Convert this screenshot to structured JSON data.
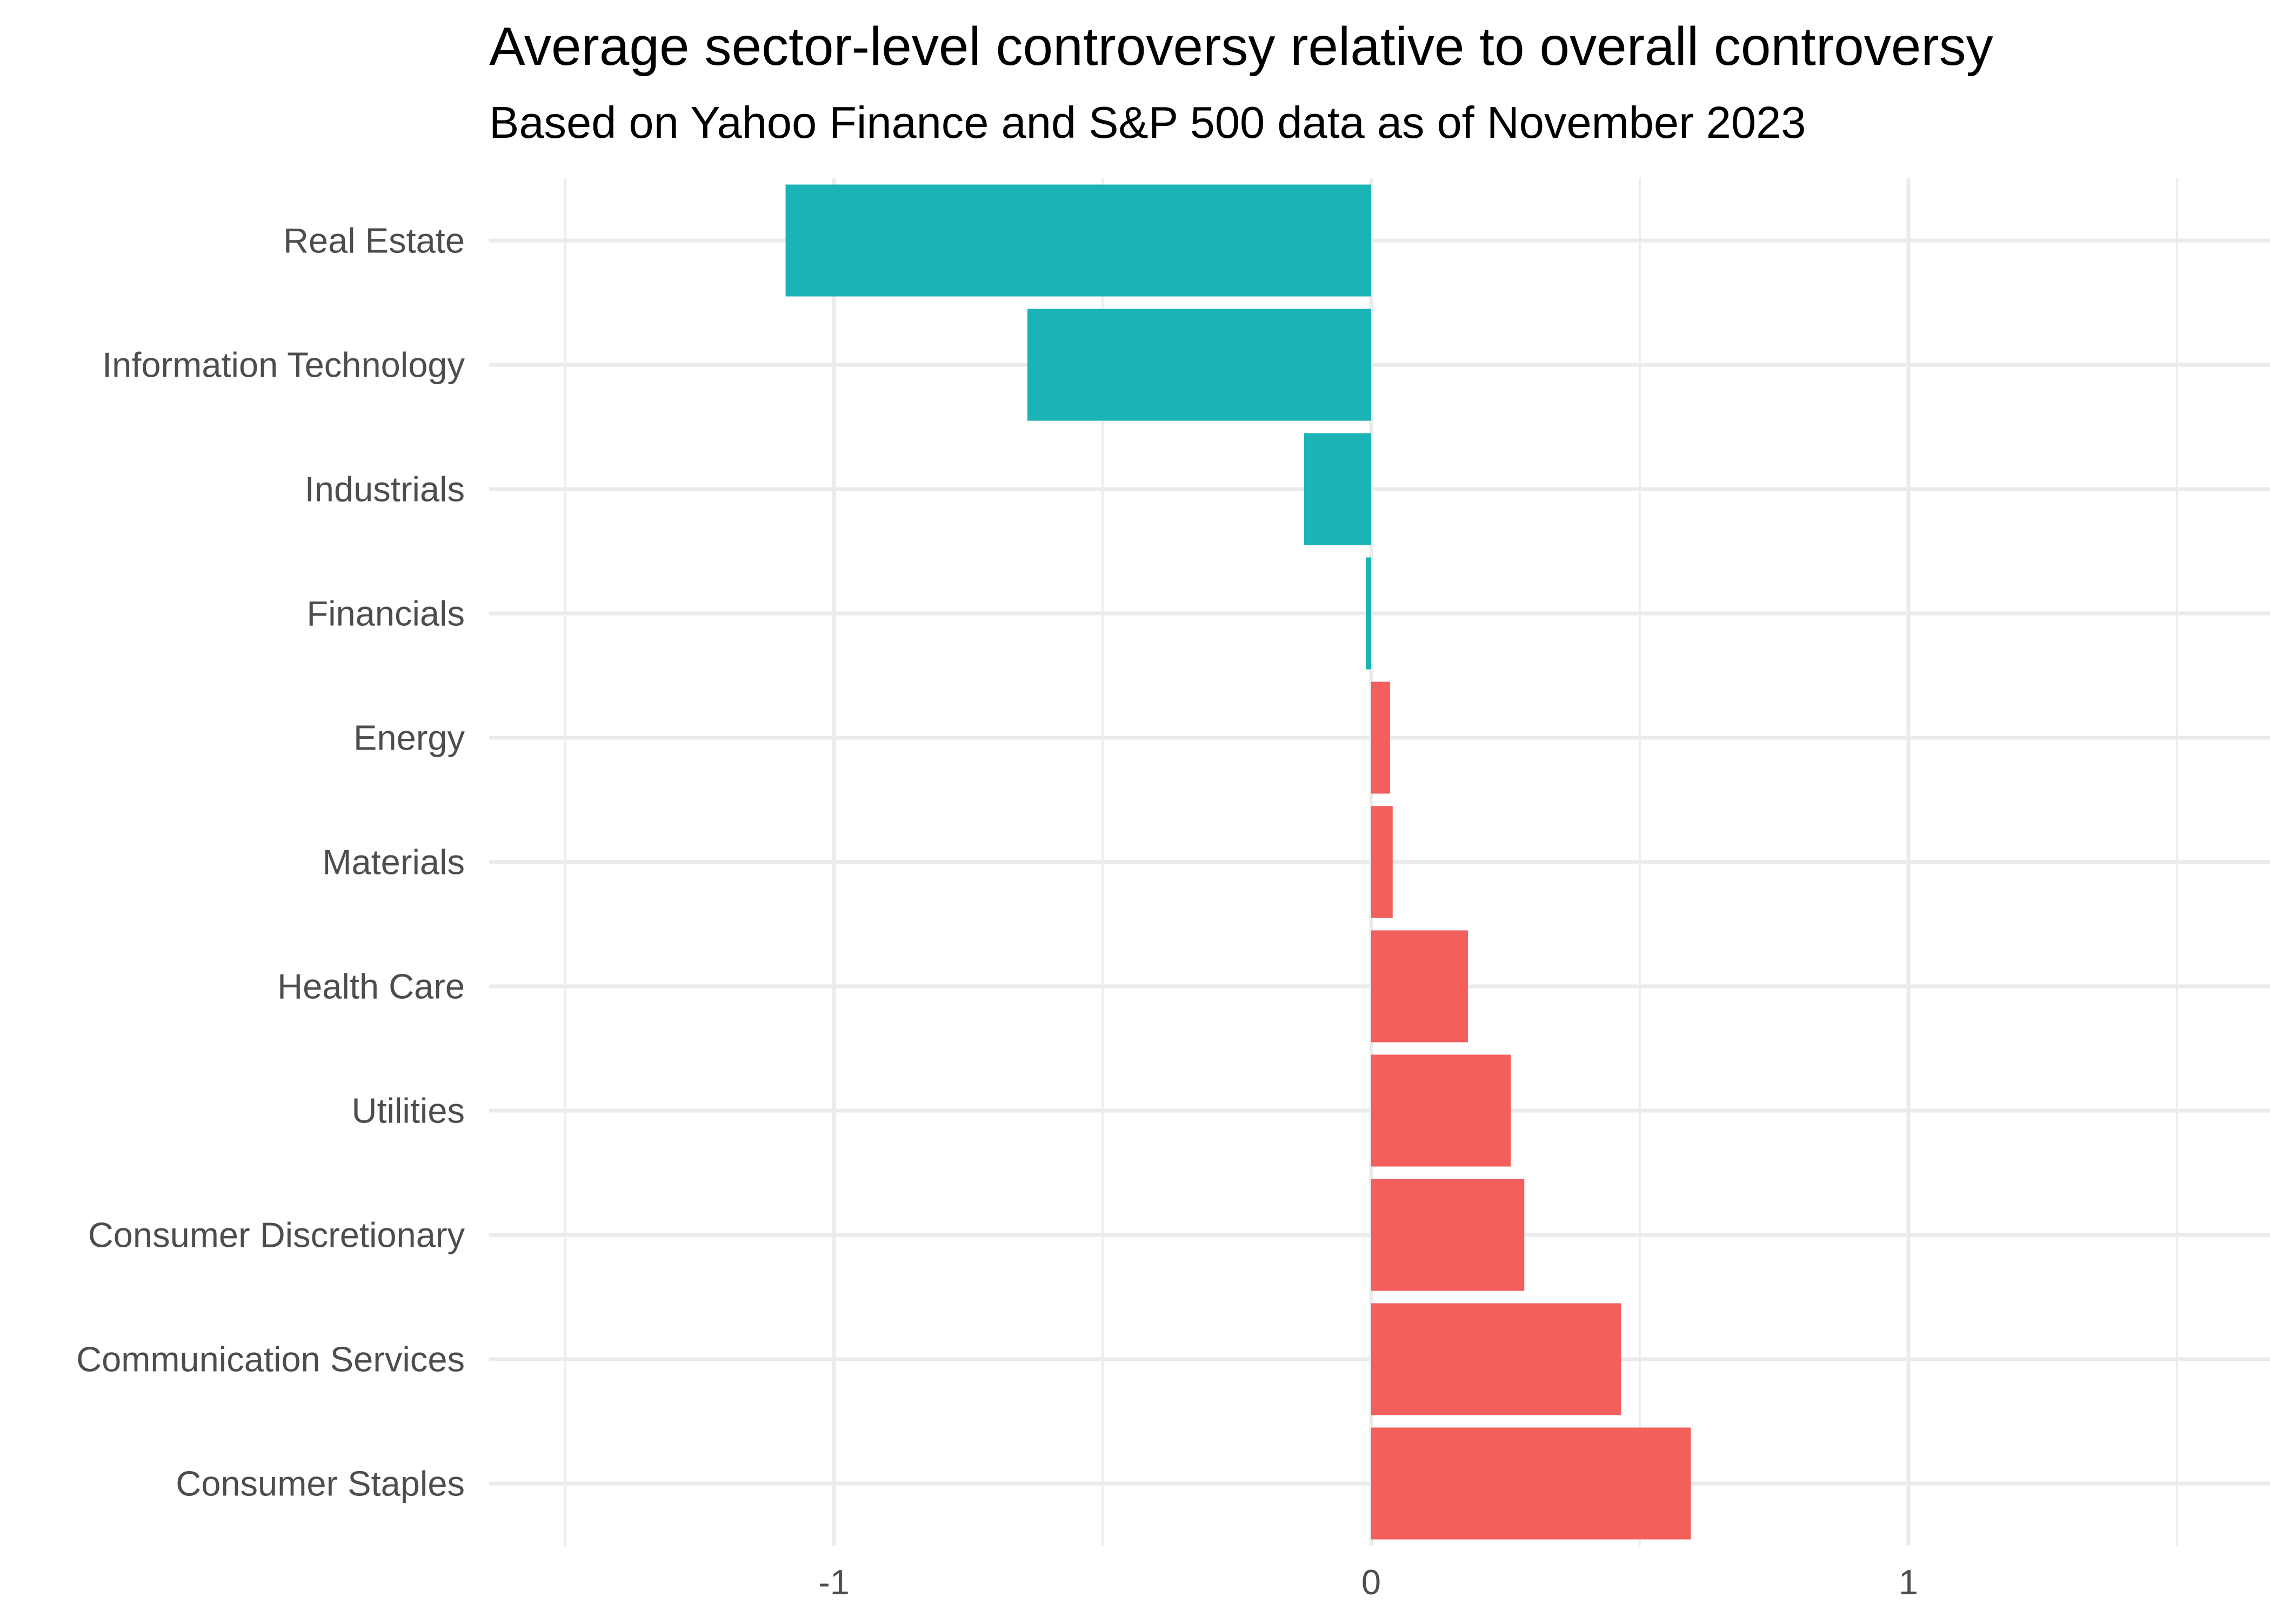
{
  "chart_data": {
    "type": "bar",
    "orientation": "horizontal",
    "title": "Average sector-level controversy relative to overall controversy",
    "subtitle": "Based on Yahoo Finance and S&P 500 data as of November 2023",
    "xlabel": "",
    "ylabel": "",
    "xlim": [
      -1.5,
      1.65
    ],
    "x_ticks": [
      -1,
      0,
      1
    ],
    "x_tick_labels": [
      "-1",
      "0",
      "1"
    ],
    "x_minor_ticks": [
      -1.5,
      -0.5,
      0.5,
      1.5
    ],
    "grid": true,
    "legend": "none",
    "categories": [
      "Real Estate",
      "Information Technology",
      "Industrials",
      "Financials",
      "Energy",
      "Materials",
      "Health Care",
      "Utilities",
      "Consumer Discretionary",
      "Communication Services",
      "Consumer Staples"
    ],
    "values": [
      -1.09,
      -0.64,
      -0.125,
      -0.01,
      0.035,
      0.04,
      0.18,
      0.26,
      0.285,
      0.465,
      0.595
    ],
    "colors": {
      "negative": "#1ab3b6",
      "positive": "#f25f5c"
    }
  }
}
